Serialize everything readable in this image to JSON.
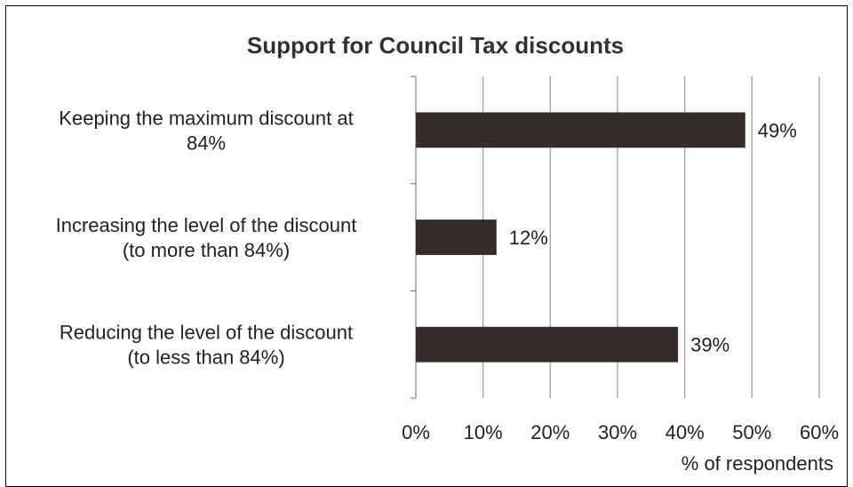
{
  "chart_data": {
    "type": "bar",
    "orientation": "horizontal",
    "title": "Support for Council Tax discounts",
    "categories": [
      [
        "Keeping the maximum discount at",
        "84%"
      ],
      [
        "Increasing the level of the discount",
        "(to more than 84%)"
      ],
      [
        "Reducing the level of the discount",
        "(to less than 84%)"
      ]
    ],
    "values": [
      49,
      12,
      39
    ],
    "data_labels": [
      "49%",
      "12%",
      "39%"
    ],
    "xlabel": "% of respondents",
    "xlim": [
      0,
      60
    ],
    "xticks": [
      0,
      10,
      20,
      30,
      40,
      50,
      60
    ],
    "xtick_labels": [
      "0%",
      "10%",
      "20%",
      "30%",
      "40%",
      "50%",
      "60%"
    ],
    "grid": true,
    "bar_color": "#372c29",
    "grid_color": "#a0a0a0"
  }
}
